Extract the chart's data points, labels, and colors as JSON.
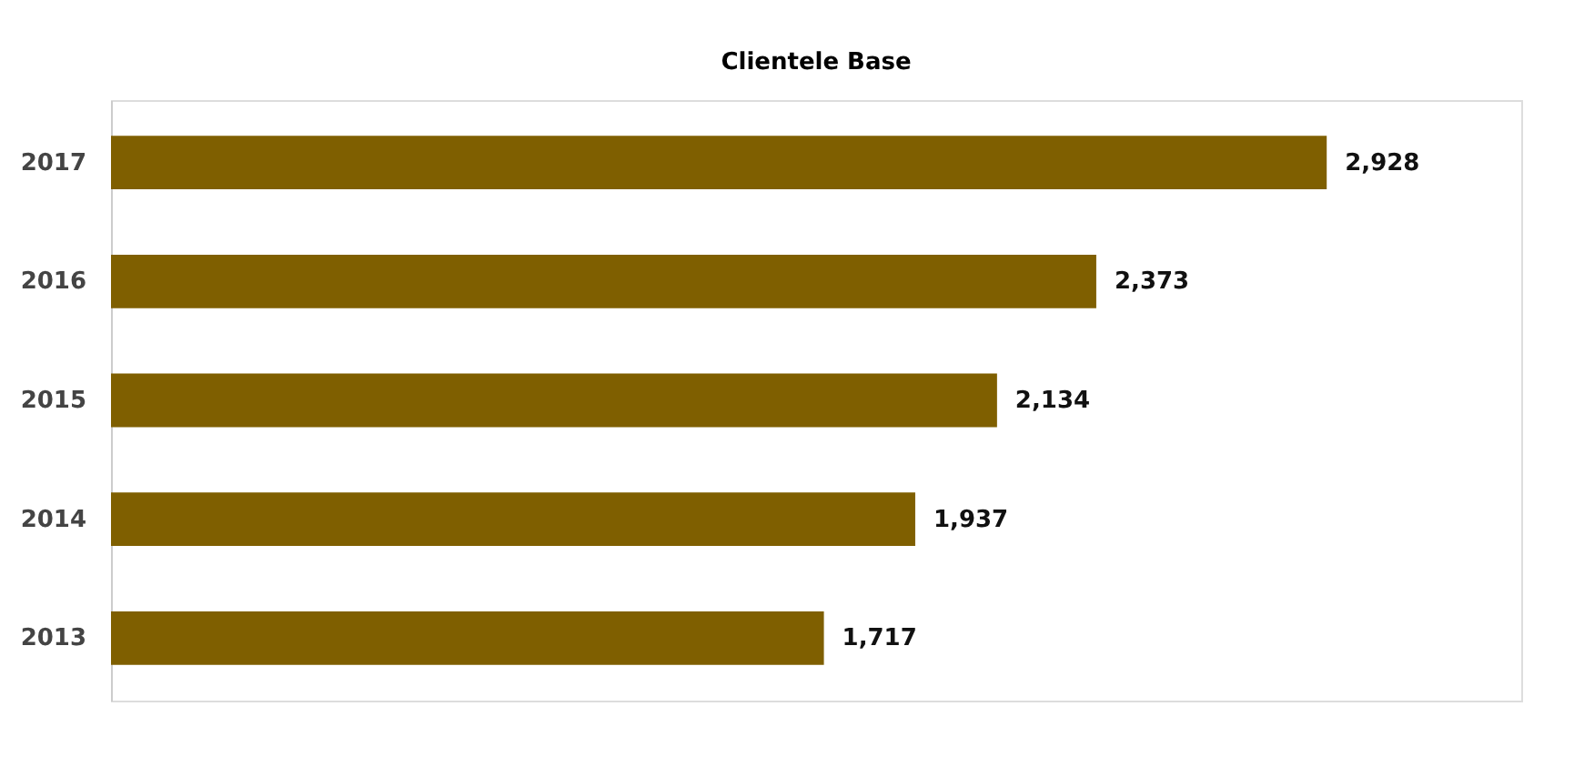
{
  "chart_data": {
    "type": "bar",
    "orientation": "horizontal",
    "title": "Clientele Base",
    "categories": [
      "2017",
      "2016",
      "2015",
      "2014",
      "2013"
    ],
    "values": [
      2928,
      2373,
      2134,
      1937,
      1717
    ],
    "value_labels": [
      "2,928",
      "2,373",
      "2,134",
      "1,937",
      "1,717"
    ],
    "color": "#7f5f00",
    "grid": false
  }
}
